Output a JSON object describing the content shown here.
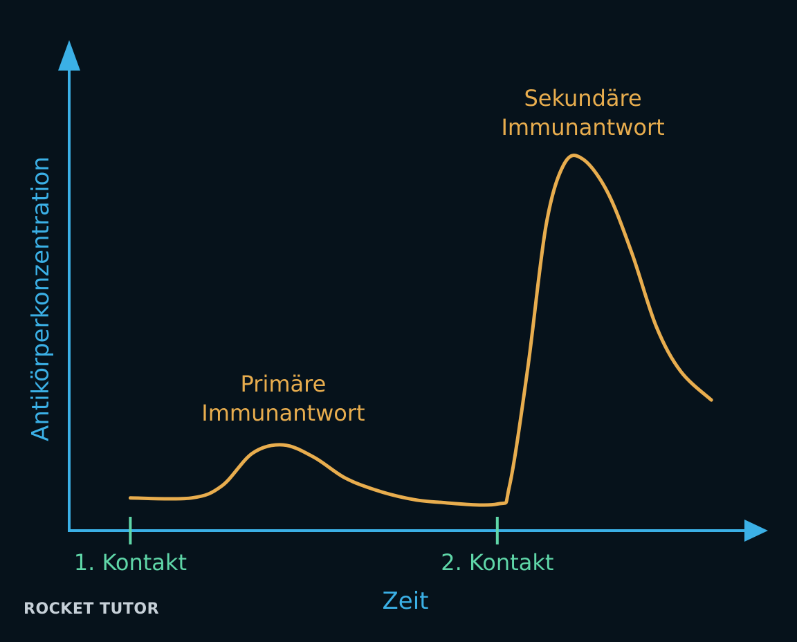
{
  "colors": {
    "background": "#06121b",
    "axis": "#3bb0e6",
    "curve": "#e8ad4e",
    "contact": "#5fd6a8",
    "logo": "#c6d0d8"
  },
  "chart_data": {
    "type": "line",
    "title": "",
    "xlabel": "Zeit",
    "ylabel": "Antikörperkonzentration",
    "grid": false,
    "axis_ticks_numeric": false,
    "x_range": [
      0,
      10
    ],
    "y_range": [
      0,
      10
    ],
    "contacts": [
      {
        "label": "1. Kontakt",
        "x": 1
      },
      {
        "label": "2. Kontakt",
        "x": 7
      }
    ],
    "series": [
      {
        "points": [
          [
            1.0,
            0.8
          ],
          [
            2.0,
            0.8
          ],
          [
            2.5,
            1.1
          ],
          [
            3.0,
            1.9
          ],
          [
            3.5,
            2.1
          ],
          [
            4.0,
            1.8
          ],
          [
            4.5,
            1.3
          ],
          [
            5.0,
            1.0
          ],
          [
            5.5,
            0.8
          ],
          [
            6.0,
            0.7
          ],
          [
            7.0,
            0.65
          ],
          [
            7.2,
            1.1
          ],
          [
            7.5,
            4.0
          ],
          [
            7.8,
            7.5
          ],
          [
            8.1,
            9.0
          ],
          [
            8.4,
            9.1
          ],
          [
            8.8,
            8.3
          ],
          [
            9.2,
            6.8
          ],
          [
            9.6,
            5.0
          ],
          [
            10.0,
            3.9
          ],
          [
            10.5,
            3.2
          ]
        ]
      }
    ],
    "annotations": [
      {
        "text_lines": [
          "Primäre",
          "Immunantwort"
        ],
        "x": 3.5,
        "y": 2.1
      },
      {
        "text_lines": [
          "Sekundäre",
          "Immunantwort"
        ],
        "x": 8.4,
        "y": 9.1
      }
    ]
  },
  "branding": {
    "logo_text": "ROCKET TUTOR"
  }
}
